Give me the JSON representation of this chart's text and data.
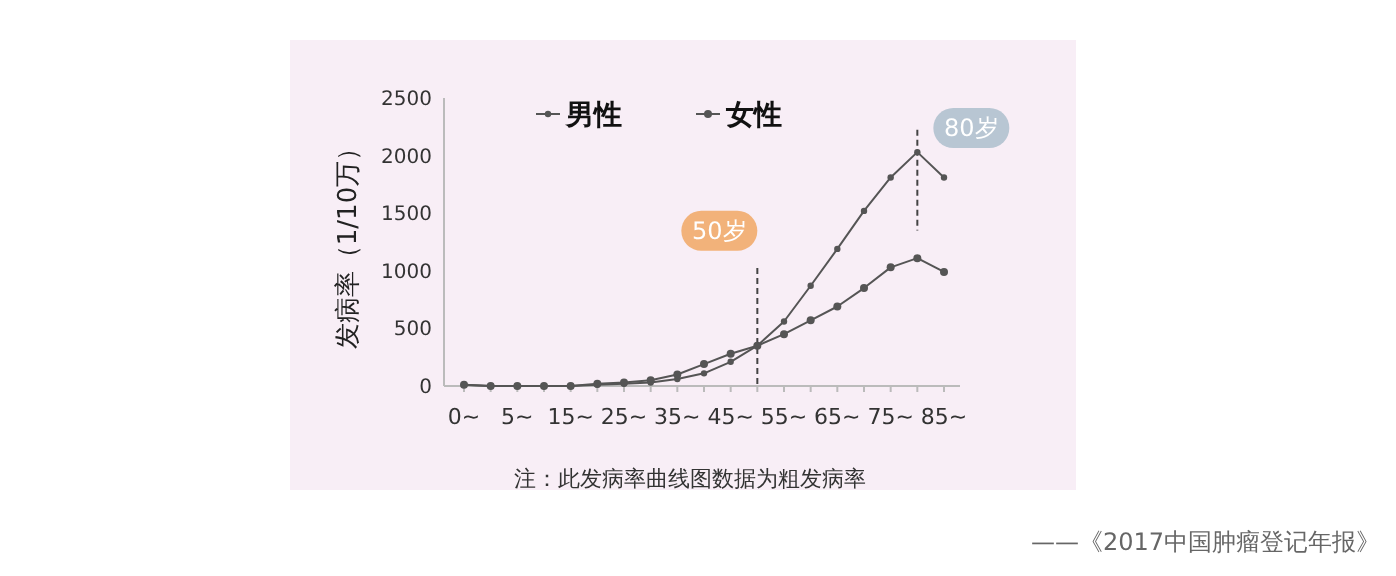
{
  "chart_data": {
    "type": "line",
    "ylabel": "发病率（1/10万）",
    "categories": [
      "0~",
      null,
      "5~",
      null,
      "15~",
      null,
      "25~",
      null,
      "35~",
      null,
      "45~",
      null,
      "55~",
      null,
      "65~",
      null,
      "75~",
      null,
      "85~"
    ],
    "series": [
      {
        "name": "男性",
        "color": "#555555",
        "values": [
          10,
          0,
          0,
          0,
          0,
          10,
          20,
          30,
          60,
          110,
          210,
          350,
          560,
          870,
          1190,
          1520,
          1810,
          2030,
          1810
        ]
      },
      {
        "name": "女性",
        "color": "#555555",
        "values": [
          10,
          0,
          0,
          0,
          0,
          20,
          30,
          50,
          100,
          190,
          280,
          350,
          450,
          570,
          690,
          850,
          1030,
          1110,
          990
        ]
      }
    ],
    "ylim": [
      0,
      2500
    ],
    "yticks": [
      0,
      500,
      1000,
      1500,
      2000,
      2500
    ],
    "legend": "top",
    "marker": "circle",
    "line_style": "solid",
    "annotations": [
      "注：此发病率曲线图数据为粗发病率",
      "——《2017中国肿瘤登记年报》",
      "50岁",
      "80岁"
    ]
  }
}
